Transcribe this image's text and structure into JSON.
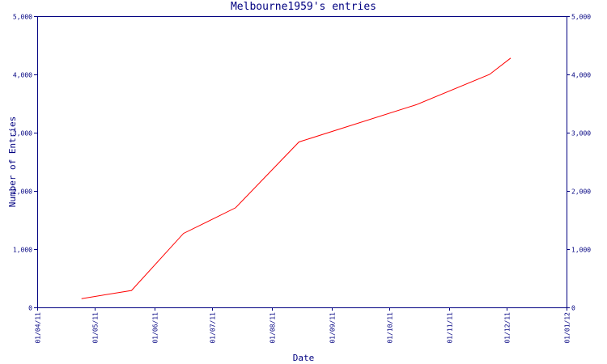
{
  "chart_data": {
    "type": "line",
    "title": "Melbourne1959's entries",
    "xlabel": "Date",
    "ylabel": "Number of Entries",
    "ylim": [
      0,
      5000
    ],
    "xlim": [
      "01/04/11",
      "01/01/12"
    ],
    "x_ticks": [
      "01/04/11",
      "01/05/11",
      "01/06/11",
      "01/07/11",
      "01/08/11",
      "01/09/11",
      "01/10/11",
      "01/11/11",
      "01/12/11",
      "01/01/12"
    ],
    "y_ticks": [
      0,
      1000,
      2000,
      3000,
      4000,
      5000
    ],
    "y_tick_labels": [
      "0",
      "1,000",
      "2,000",
      "3,000",
      "4,000",
      "5,000"
    ],
    "grid": false,
    "series": [
      {
        "color": "#ff0000",
        "points": [
          {
            "x": "2011-04-24",
            "y": 150
          },
          {
            "x": "2011-05-20",
            "y": 290
          },
          {
            "x": "2011-06-16",
            "y": 1270
          },
          {
            "x": "2011-07-13",
            "y": 1710
          },
          {
            "x": "2011-08-15",
            "y": 2840
          },
          {
            "x": "2011-10-15",
            "y": 3480
          },
          {
            "x": "2011-11-22",
            "y": 4000
          },
          {
            "x": "2011-12-03",
            "y": 4280
          }
        ]
      }
    ]
  }
}
